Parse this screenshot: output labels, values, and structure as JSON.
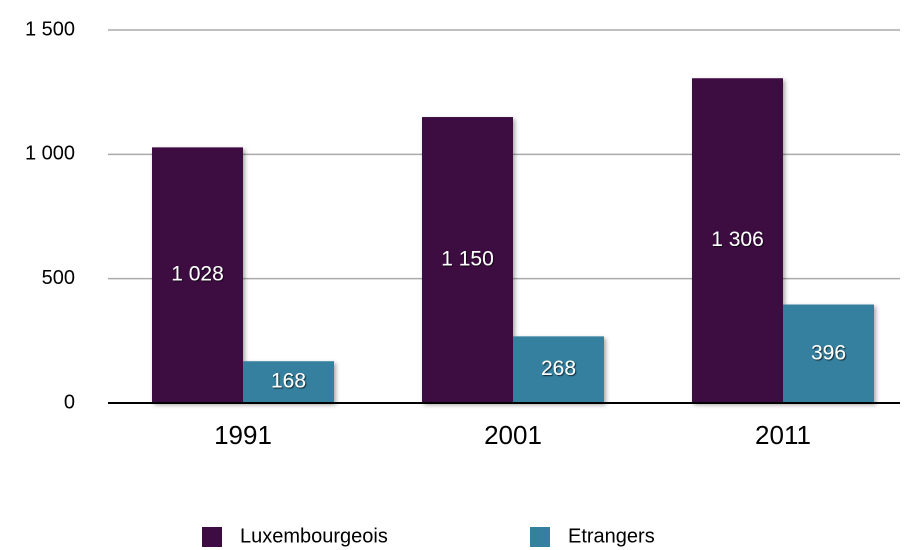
{
  "chart_data": {
    "type": "bar",
    "categories": [
      "1991",
      "2001",
      "2011"
    ],
    "series": [
      {
        "name": "Luxembourgeois",
        "color": "#3d0c42",
        "values": [
          1028,
          1150,
          1306
        ],
        "value_labels": [
          "1 028",
          "1 150",
          "1 306"
        ]
      },
      {
        "name": "Etrangers",
        "color": "#35809e",
        "values": [
          168,
          268,
          396
        ]
      }
    ],
    "ylim": [
      0,
      1500
    ],
    "yticks": [
      0,
      500,
      {
        "value": 1000,
        "label": "1 000"
      },
      {
        "value": 1500,
        "label": "1 500"
      }
    ],
    "grid": true,
    "legend": "bottom"
  }
}
